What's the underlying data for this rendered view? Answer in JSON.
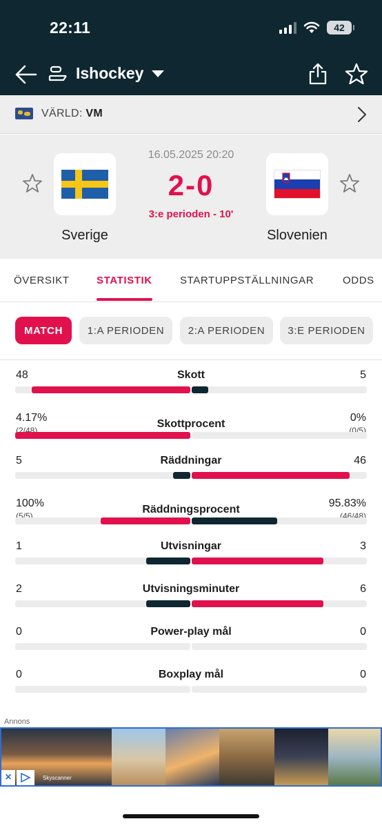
{
  "status_bar": {
    "time": "22:11",
    "battery": "42"
  },
  "nav": {
    "title": "Ishockey"
  },
  "league": {
    "region": "VÄRLD:",
    "name": "VM"
  },
  "match": {
    "date": "16.05.2025 20:20",
    "score": "2-0",
    "status": "3:e perioden - 10'",
    "home": {
      "name": "Sverige"
    },
    "away": {
      "name": "Slovenien"
    }
  },
  "tabs": [
    "ÖVERSIKT",
    "STATISTIK",
    "STARTUPPSTÄLLNINGAR",
    "ODDS"
  ],
  "chips": [
    "MATCH",
    "1:A PERIODEN",
    "2:A PERIODEN",
    "3:E PERIODEN"
  ],
  "colors": {
    "accent": "#e1114d",
    "dark": "#0e2731",
    "home_bar": "#e1114d",
    "away_bar": "#0e2731"
  },
  "stats": [
    {
      "label": "Skott",
      "home": "48",
      "away": "5",
      "home_share": 0.906,
      "away_share": 0.094
    },
    {
      "label": "Skottprocent",
      "home": "4.17%",
      "home_sub": "(2/48)",
      "away": "0%",
      "away_sub": "(0/5)",
      "home_share": 1.0,
      "away_share": 0.0
    },
    {
      "label": "Räddningar",
      "home": "5",
      "away": "46",
      "home_share": 0.098,
      "away_share": 0.902
    },
    {
      "label": "Räddningsprocent",
      "home": "100%",
      "home_sub": "(5/5)",
      "away": "95.83%",
      "away_sub": "(46/48)",
      "home_share": 0.511,
      "away_share": 0.489
    },
    {
      "label": "Utvisningar",
      "home": "1",
      "away": "3",
      "home_share": 0.25,
      "away_share": 0.75
    },
    {
      "label": "Utvisningsminuter",
      "home": "2",
      "away": "6",
      "home_share": 0.25,
      "away_share": 0.75
    },
    {
      "label": "Power-play mål",
      "home": "0",
      "away": "0",
      "home_share": 0,
      "away_share": 0
    },
    {
      "label": "Boxplay mål",
      "home": "0",
      "away": "0",
      "home_share": 0,
      "away_share": 0
    }
  ],
  "ad": {
    "label": "Annons",
    "brand": "Skyscanner"
  }
}
